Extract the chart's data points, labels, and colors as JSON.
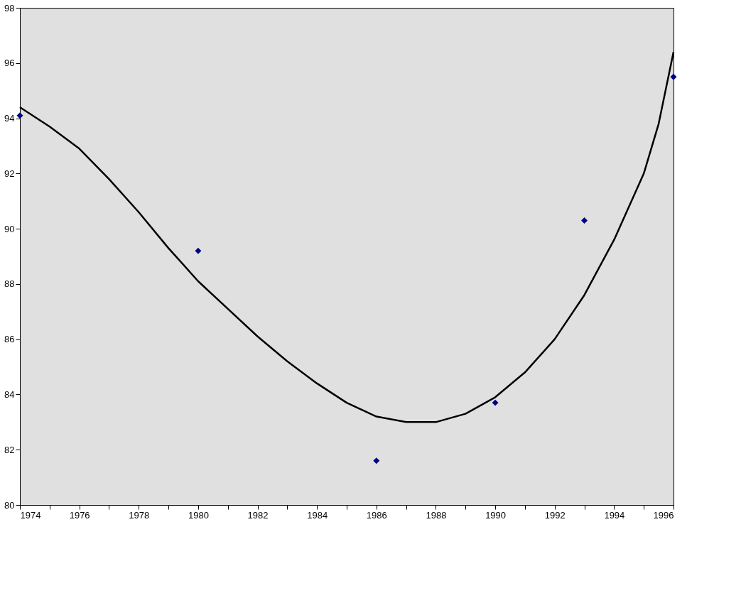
{
  "chart_data": {
    "type": "scatter",
    "xlim": [
      1974,
      1996
    ],
    "xticks": [
      1974,
      {
        "value": 1975,
        "label": null
      },
      1976,
      {
        "value": 1977,
        "label": null
      },
      1978,
      {
        "value": 1979,
        "label": null
      },
      1980,
      {
        "value": 1981,
        "label": null
      },
      1982,
      {
        "value": 1983,
        "label": null
      },
      1984,
      {
        "value": 1985,
        "label": null
      },
      1986,
      {
        "value": 1987,
        "label": null
      },
      1988,
      {
        "value": 1989,
        "label": null
      },
      1990,
      {
        "value": 1991,
        "label": null
      },
      1992,
      {
        "value": 1993,
        "label": null
      },
      1994,
      {
        "value": 1995,
        "label": null
      },
      1996
    ],
    "ylim": [
      80,
      98
    ],
    "yticks": [
      80,
      82,
      84,
      86,
      88,
      90,
      92,
      94,
      96,
      98
    ],
    "grid": false,
    "series": [
      {
        "marker": "diamond",
        "color": "#000080",
        "x": [
          1974,
          1980,
          1986,
          1990,
          1993,
          1996
        ],
        "values": [
          94.1,
          89.2,
          81.6,
          83.7,
          90.3,
          95.5
        ]
      },
      {
        "type": "line",
        "marker": "none",
        "line_style": "solid",
        "color": "#000000",
        "x": [
          1974,
          1975,
          1976,
          1977,
          1978,
          1979,
          1980,
          1981,
          1982,
          1983,
          1984,
          1985,
          1986,
          1987,
          1988,
          1989,
          1990,
          1991,
          1992,
          1993,
          1994,
          1995,
          1995.5,
          1996
        ],
        "values": [
          94.4,
          93.7,
          92.9,
          91.8,
          90.6,
          89.3,
          88.1,
          87.1,
          86.1,
          85.2,
          84.4,
          83.7,
          83.2,
          83.0,
          83.0,
          83.3,
          83.9,
          84.8,
          86.0,
          87.6,
          89.6,
          92.0,
          93.8,
          96.4
        ]
      }
    ]
  }
}
